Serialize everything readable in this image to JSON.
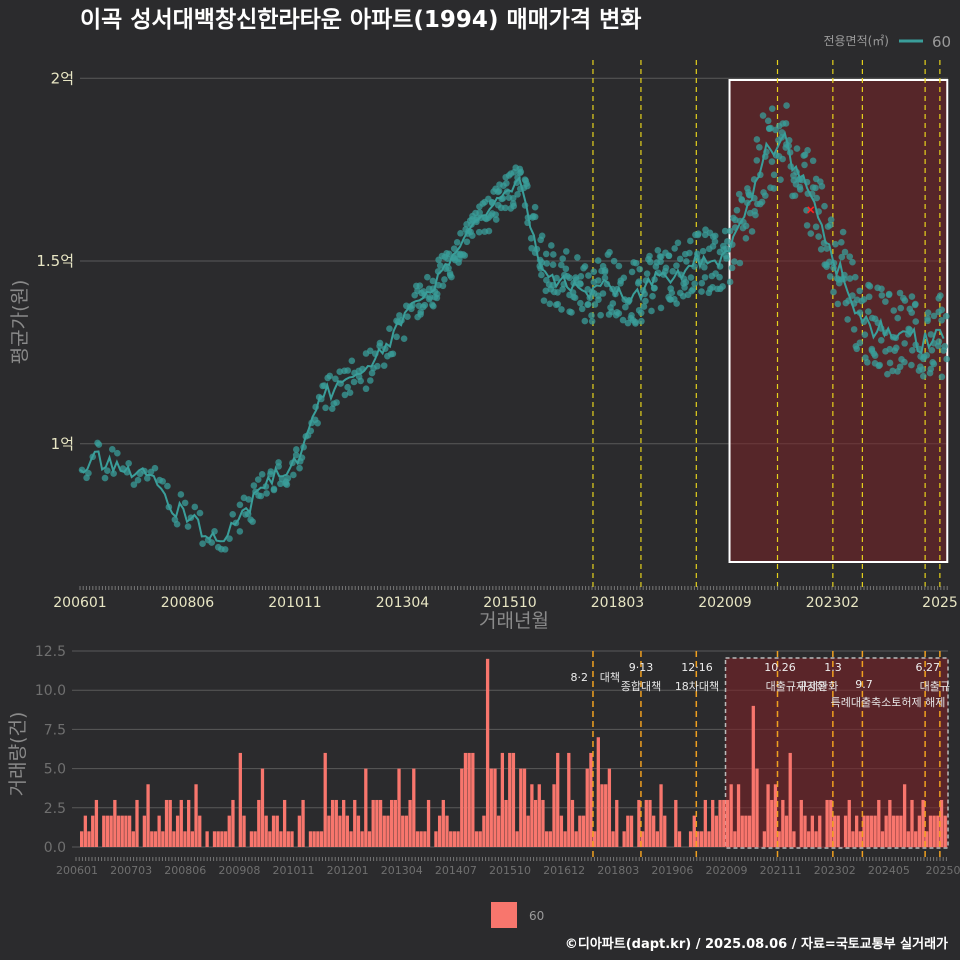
{
  "title": "이곡 성서대백창신한라타운 아파트(1994) 매매가격 변화",
  "legend_top": {
    "title": "전용면적(㎡)",
    "item": "60",
    "color": "#3a9e9a"
  },
  "legend_bottom": {
    "item": "60",
    "color": "#f8766d"
  },
  "footer": "©디아파트(dapt.kr) / 2025.08.06 / 자료=국토교통부 실거래가",
  "colors": {
    "background": "#2b2b2d",
    "price": "#3a9e9a",
    "volume": "#f8766d",
    "policy_line": "#e6d21c",
    "highlight": "#7a2226",
    "marker": "#ff2020"
  },
  "chart_data": [
    {
      "type": "scatter",
      "title": "이곡 성서대백창신한라타운 아파트(1994) 매매가격 변화",
      "xlabel": "거래년월",
      "ylabel": "평균가(원)",
      "x_ticks": [
        "200601",
        "200806",
        "201011",
        "201304",
        "201510",
        "201803",
        "202009",
        "202302",
        "2025"
      ],
      "y_ticks": [
        "1억",
        "1.5억",
        "2억"
      ],
      "ylim": [
        0.6,
        2.05
      ],
      "y_unit": "억",
      "series_name": "60",
      "trend": [
        [
          "2006-01",
          0.93
        ],
        [
          "2006-06",
          0.96
        ],
        [
          "2006-12",
          0.92
        ],
        [
          "2007-06",
          0.94
        ],
        [
          "2007-12",
          0.84
        ],
        [
          "2008-06",
          0.8
        ],
        [
          "2008-12",
          0.75
        ],
        [
          "2009-06",
          0.76
        ],
        [
          "2009-12",
          0.85
        ],
        [
          "2010-06",
          0.92
        ],
        [
          "2010-12",
          0.95
        ],
        [
          "2011-06",
          1.12
        ],
        [
          "2011-12",
          1.17
        ],
        [
          "2012-06",
          1.2
        ],
        [
          "2012-12",
          1.27
        ],
        [
          "2013-06",
          1.37
        ],
        [
          "2013-12",
          1.42
        ],
        [
          "2014-06",
          1.52
        ],
        [
          "2014-12",
          1.6
        ],
        [
          "2015-06",
          1.66
        ],
        [
          "2015-12",
          1.72
        ],
        [
          "2016-06",
          1.48
        ],
        [
          "2016-12",
          1.44
        ],
        [
          "2017-06",
          1.42
        ],
        [
          "2017-12",
          1.44
        ],
        [
          "2018-06",
          1.4
        ],
        [
          "2018-12",
          1.44
        ],
        [
          "2019-06",
          1.46
        ],
        [
          "2019-12",
          1.5
        ],
        [
          "2020-06",
          1.5
        ],
        [
          "2020-12",
          1.58
        ],
        [
          "2021-06",
          1.78
        ],
        [
          "2021-12",
          1.84
        ],
        [
          "2022-06",
          1.7
        ],
        [
          "2022-12",
          1.55
        ],
        [
          "2023-06",
          1.38
        ],
        [
          "2023-12",
          1.32
        ],
        [
          "2024-06",
          1.3
        ],
        [
          "2024-12",
          1.28
        ],
        [
          "2025-06",
          1.3
        ]
      ],
      "highlight_box": [
        "2020-09",
        "2025-08"
      ],
      "policy_dates": [
        "2017-08",
        "2018-09",
        "2019-12",
        "2021-10",
        "2023-01",
        "2023-09",
        "2025-02",
        "2025-06"
      ],
      "latest_marker": [
        "2022-07",
        1.64
      ]
    },
    {
      "type": "bar",
      "ylabel": "거래량(건)",
      "x_ticks": [
        "200601",
        "200703",
        "200806",
        "200908",
        "201011",
        "201201",
        "201304",
        "201407",
        "201510",
        "201612",
        "201803",
        "201906",
        "202009",
        "202111",
        "202302",
        "202405",
        "20250"
      ],
      "y_ticks": [
        "0.0",
        "2.5",
        "5.0",
        "7.5",
        "10.0",
        "12.5"
      ],
      "ylim": [
        0,
        12.5
      ],
      "series_name": "60",
      "peak_bar": [
        "2015-03",
        12
      ],
      "annotations": [
        {
          "date": "8·2",
          "text": "대책"
        },
        {
          "date": "9·13",
          "text": "종합대책"
        },
        {
          "date": "12·16",
          "text": "18차대책"
        },
        {
          "date": "10.26",
          "text": "대출규제강화"
        },
        {
          "date": "1.3",
          "text": "규제완화"
        },
        {
          "date": "9.7",
          "text": "특례대출축소토허제 해제"
        },
        {
          "date": "6.27",
          "text": "대출규"
        }
      ]
    }
  ]
}
